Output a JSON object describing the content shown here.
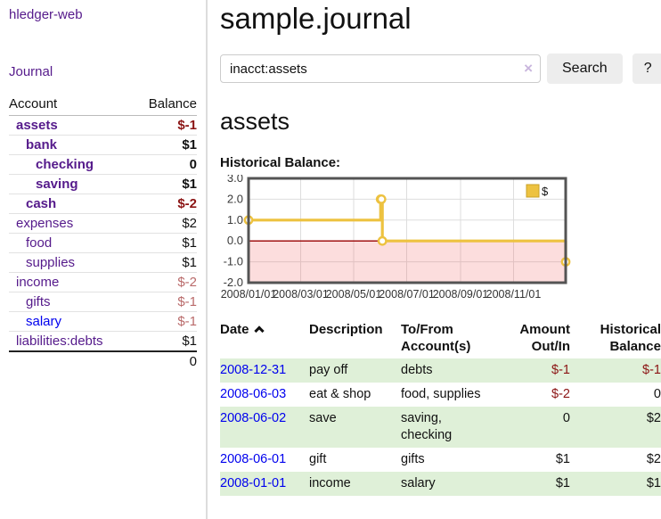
{
  "app": {
    "brand": "hledger-web",
    "nav_journal": "Journal"
  },
  "colors": {
    "link_visited": "#551a8b",
    "link_unvisited": "#0000ee",
    "negative_strong": "#8b1414",
    "negative_muted": "#b96a6a",
    "row_stripe_green": "#dff0d8",
    "chart_line_gold": "#edc240",
    "chart_border": "#545454",
    "chart_zero_line": "#990000",
    "chart_negative_fill": "rgba(240,100,100,0.22)"
  },
  "sidebar": {
    "header": {
      "account": "Account",
      "balance": "Balance"
    },
    "rows": [
      {
        "name": "assets",
        "balance": "$-1",
        "depth": 1,
        "bold": true,
        "neg": "strong"
      },
      {
        "name": "bank",
        "balance": "$1",
        "depth": 2,
        "bold": true,
        "neg": "none"
      },
      {
        "name": "checking",
        "balance": "0",
        "depth": 3,
        "bold": true,
        "neg": "none"
      },
      {
        "name": "saving",
        "balance": "$1",
        "depth": 3,
        "bold": true,
        "neg": "none"
      },
      {
        "name": "cash",
        "balance": "$-2",
        "depth": 2,
        "bold": true,
        "neg": "strong"
      },
      {
        "name": "expenses",
        "balance": "$2",
        "depth": 1,
        "bold": false,
        "neg": "none"
      },
      {
        "name": "food",
        "balance": "$1",
        "depth": 2,
        "bold": false,
        "neg": "none"
      },
      {
        "name": "supplies",
        "balance": "$1",
        "depth": 2,
        "bold": false,
        "neg": "none"
      },
      {
        "name": "income",
        "balance": "$-2",
        "depth": 1,
        "bold": false,
        "neg": "muted"
      },
      {
        "name": "gifts",
        "balance": "$-1",
        "depth": 2,
        "bold": false,
        "neg": "muted"
      },
      {
        "name": "salary",
        "balance": "$-1",
        "depth": 2,
        "bold": false,
        "neg": "muted",
        "unvisited": true
      },
      {
        "name": "liabilities:debts",
        "balance": "$1",
        "depth": 1,
        "bold": false,
        "neg": "none"
      }
    ],
    "total": "0"
  },
  "main": {
    "title": "sample.journal",
    "search": {
      "value": "inacct:assets",
      "clear_icon": "×",
      "button_label": "Search",
      "help_label": "?"
    },
    "account_heading": "assets",
    "chart_label": "Historical Balance:"
  },
  "chart_data": {
    "type": "line",
    "title": "Historical Balance:",
    "step": true,
    "x_is_date": true,
    "xrange": [
      "2008-01-01",
      "2008-12-31"
    ],
    "ylim": [
      -2,
      3
    ],
    "yticks": [
      "3.0",
      "2.0",
      "1.0",
      "0.0",
      "-1.0",
      "-2.0"
    ],
    "ytick_values": [
      3,
      2,
      1,
      0,
      -1,
      -2
    ],
    "xticks": [
      "2008/01/01",
      "2008/03/01",
      "2008/05/01",
      "2008/07/01",
      "2008/09/01",
      "2008/11/01"
    ],
    "xtick_dates": [
      "2008-01-01",
      "2008-03-01",
      "2008-05-01",
      "2008-07-01",
      "2008-09-01",
      "2008-11-01"
    ],
    "grid": true,
    "legend": [
      {
        "label": "$",
        "color": "#edc240"
      }
    ],
    "legend_position": "top-right",
    "series": [
      {
        "name": "$",
        "color": "#edc240",
        "points": [
          {
            "x": "2008-01-01",
            "y": 1
          },
          {
            "x": "2008-06-01",
            "y": 2
          },
          {
            "x": "2008-06-02",
            "y": 2
          },
          {
            "x": "2008-06-03",
            "y": 0
          },
          {
            "x": "2008-12-31",
            "y": -1
          }
        ]
      }
    ]
  },
  "register": {
    "headers": {
      "date": "Date",
      "description": "Description",
      "accounts": "To/From Account(s)",
      "amount": "Amount Out/In",
      "balance": "Historical Balance"
    },
    "rows": [
      {
        "date": "2008-12-31",
        "description": "pay off",
        "accounts": "debts",
        "amount": "$-1",
        "amount_neg": true,
        "balance": "$-1",
        "balance_neg": true
      },
      {
        "date": "2008-06-03",
        "description": "eat & shop",
        "accounts": "food, supplies",
        "amount": "$-2",
        "amount_neg": true,
        "balance": "0",
        "balance_neg": false
      },
      {
        "date": "2008-06-02",
        "description": "save",
        "accounts": "saving, checking",
        "amount": "0",
        "amount_neg": false,
        "balance": "$2",
        "balance_neg": false
      },
      {
        "date": "2008-06-01",
        "description": "gift",
        "accounts": "gifts",
        "amount": "$1",
        "amount_neg": false,
        "balance": "$2",
        "balance_neg": false
      },
      {
        "date": "2008-01-01",
        "description": "income",
        "accounts": "salary",
        "amount": "$1",
        "amount_neg": false,
        "balance": "$1",
        "balance_neg": false
      }
    ]
  }
}
